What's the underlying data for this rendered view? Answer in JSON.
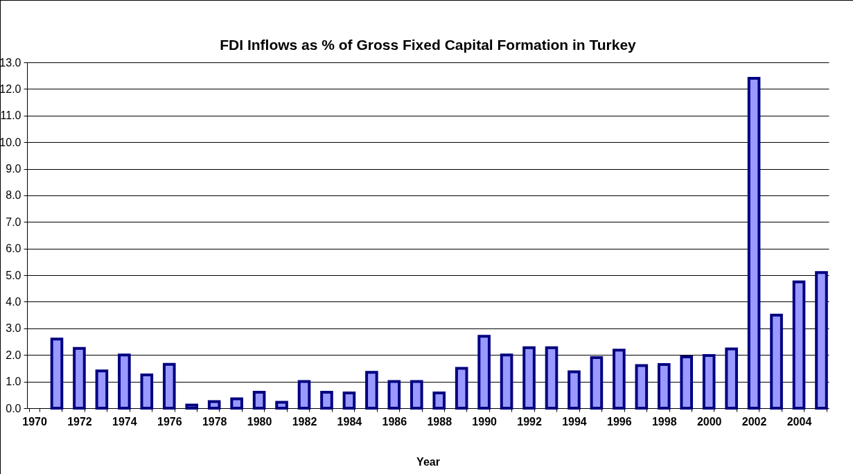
{
  "chart_data": {
    "type": "bar",
    "title": "FDI Inflows as % of Gross Fixed Capital Formation in Turkey",
    "xlabel": "Year",
    "categories": [
      "1970",
      null,
      "1972",
      null,
      "1974",
      null,
      "1976",
      null,
      "1978",
      null,
      "1980",
      null,
      "1982",
      null,
      "1984",
      null,
      "1986",
      null,
      "1988",
      null,
      "1990",
      null,
      "1992",
      null,
      "1994",
      null,
      "1996",
      null,
      "1998",
      null,
      "2000",
      null,
      "2002",
      null,
      "2004",
      null
    ],
    "values": [
      null,
      2.6,
      2.25,
      1.4,
      2.0,
      1.25,
      1.65,
      0.12,
      0.25,
      0.35,
      0.6,
      0.22,
      1.0,
      0.6,
      0.57,
      1.35,
      1.0,
      1.0,
      0.57,
      1.5,
      2.7,
      2.0,
      2.27,
      2.27,
      1.37,
      1.9,
      2.18,
      1.6,
      1.64,
      1.93,
      1.98,
      2.23,
      12.4,
      3.5,
      4.75,
      5.1
    ],
    "color": "#9999ff",
    "ylim": [
      0,
      13
    ],
    "yticks": [
      {
        "value": 0,
        "label": "0.0"
      },
      {
        "value": 1,
        "label": "1.0"
      },
      {
        "value": 2,
        "label": "2.0"
      },
      {
        "value": 3,
        "label": "3.0"
      },
      {
        "value": 4,
        "label": "4.0"
      },
      {
        "value": 5,
        "label": "5.0"
      },
      {
        "value": 6,
        "label": "6.0"
      },
      {
        "value": 7,
        "label": "7.0"
      },
      {
        "value": 8,
        "label": "8.0"
      },
      {
        "value": 9,
        "label": "9.0"
      },
      {
        "value": 10,
        "label": "10.0"
      },
      {
        "value": 11,
        "label": "11.0"
      },
      {
        "value": 12,
        "label": "12.0"
      },
      {
        "value": 13,
        "label": "13.0"
      }
    ],
    "grid": "y"
  }
}
